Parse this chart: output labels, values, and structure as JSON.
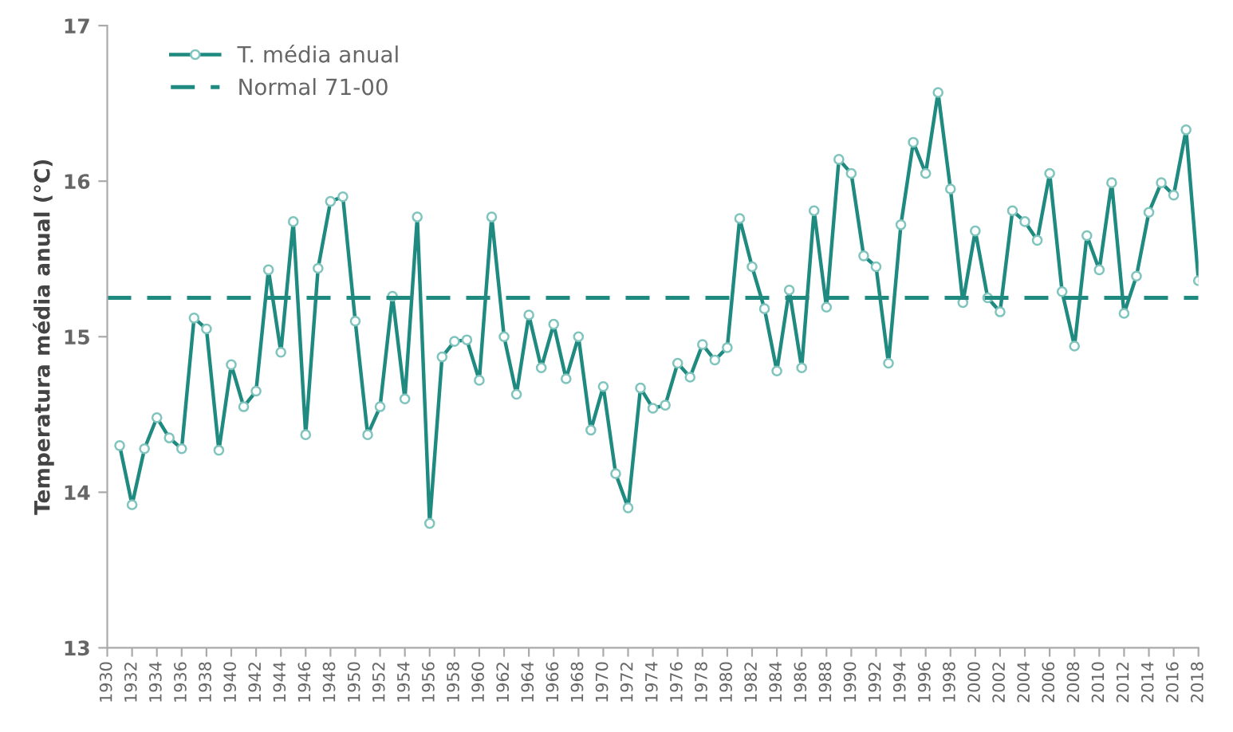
{
  "chart_data": {
    "type": "line",
    "ylabel": "Temperatura média anual (°C)",
    "x": [
      1931,
      1932,
      1933,
      1934,
      1935,
      1936,
      1937,
      1938,
      1939,
      1940,
      1941,
      1942,
      1943,
      1944,
      1945,
      1946,
      1947,
      1948,
      1949,
      1950,
      1951,
      1952,
      1953,
      1954,
      1955,
      1956,
      1957,
      1958,
      1959,
      1960,
      1961,
      1962,
      1963,
      1964,
      1965,
      1966,
      1967,
      1968,
      1969,
      1970,
      1971,
      1972,
      1973,
      1974,
      1975,
      1976,
      1977,
      1978,
      1979,
      1980,
      1981,
      1982,
      1983,
      1984,
      1985,
      1986,
      1987,
      1988,
      1989,
      1990,
      1991,
      1992,
      1993,
      1994,
      1995,
      1996,
      1997,
      1998,
      1999,
      2000,
      2001,
      2002,
      2003,
      2004,
      2005,
      2006,
      2007,
      2008,
      2009,
      2010,
      2011,
      2012,
      2013,
      2014,
      2015,
      2016,
      2017,
      2018
    ],
    "series": [
      {
        "name": "T. média anual",
        "color": "#1f8a80",
        "values": [
          14.3,
          13.92,
          14.28,
          14.48,
          14.35,
          14.28,
          15.12,
          15.05,
          14.27,
          14.82,
          14.55,
          14.65,
          15.43,
          14.9,
          15.74,
          14.37,
          15.44,
          15.87,
          15.9,
          15.1,
          14.37,
          14.55,
          15.26,
          14.6,
          15.77,
          13.8,
          14.87,
          14.97,
          14.98,
          14.72,
          15.77,
          15.0,
          14.63,
          15.14,
          14.8,
          15.08,
          14.73,
          15.0,
          14.4,
          14.68,
          14.12,
          13.9,
          14.67,
          14.54,
          14.56,
          14.83,
          14.74,
          14.95,
          14.85,
          14.93,
          15.76,
          15.45,
          15.18,
          14.78,
          15.3,
          14.8,
          15.81,
          15.19,
          16.14,
          16.05,
          15.52,
          15.45,
          14.83,
          15.72,
          16.25,
          16.05,
          16.57,
          15.95,
          15.22,
          15.68,
          15.25,
          15.16,
          15.81,
          15.74,
          15.62,
          16.05,
          15.29,
          14.94,
          15.65,
          15.43,
          15.99,
          15.15,
          15.39,
          15.8,
          15.99,
          15.91,
          16.33,
          15.36
        ]
      }
    ],
    "ref_lines": [
      {
        "axis": "y",
        "value": 15.25,
        "label": "Normal 71-00",
        "color": "#1f8a80",
        "line_style": "dashed"
      }
    ],
    "xlim": [
      1930,
      2018
    ],
    "xticks": [
      1930,
      1932,
      1934,
      1936,
      1938,
      1940,
      1942,
      1944,
      1946,
      1948,
      1950,
      1952,
      1954,
      1956,
      1958,
      1960,
      1962,
      1964,
      1966,
      1968,
      1970,
      1972,
      1974,
      1976,
      1978,
      1980,
      1982,
      1984,
      1986,
      1988,
      1990,
      1992,
      1994,
      1996,
      1998,
      2000,
      2002,
      2004,
      2006,
      2008,
      2010,
      2012,
      2014,
      2016,
      2018
    ],
    "ylim": [
      13,
      17
    ],
    "yticks": [
      13,
      14,
      15,
      16,
      17
    ],
    "grid": false,
    "legend": "top left",
    "marker": "circle",
    "line_style": "solid"
  }
}
